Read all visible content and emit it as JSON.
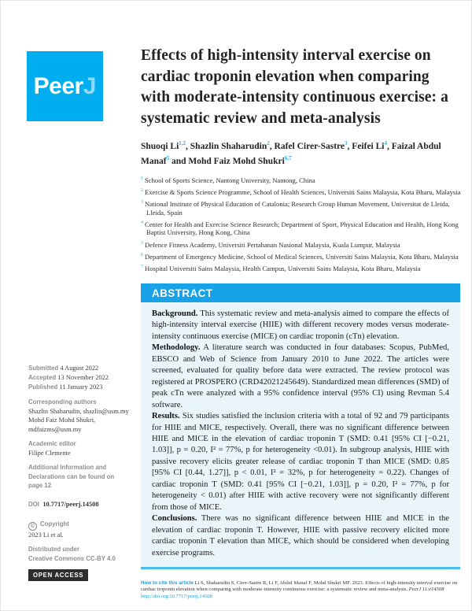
{
  "colors": {
    "brand_blue": "#00aeef",
    "abstract_bar_blue": "#18a2e8",
    "abstract_bg": "#eaf4fb",
    "abstract_rule": "#47bdf0",
    "superscript_blue": "#2fafe3",
    "sidebar_gray": "#8e8e8e",
    "open_access_bg": "#2d2d2d"
  },
  "logo": {
    "peer": "Peer",
    "jay": "J"
  },
  "article": {
    "title": "Effects of high-intensity interval exercise on cardiac troponin elevation when comparing with moderate-intensity continuous exercise: a systematic review and meta-analysis",
    "authors": [
      {
        "name": "Shuoqi Li",
        "sup": "1,2",
        "sep": ", "
      },
      {
        "name": "Shazlin Shaharudin",
        "sup": "2",
        "sep": ", "
      },
      {
        "name": "Rafel Cirer-Sastre",
        "sup": "3",
        "sep": ", "
      },
      {
        "name": "Feifei Li",
        "sup": "4",
        "sep": ", "
      },
      {
        "name": "Faizal Abdul Manaf",
        "sup": "5",
        "sep": " and "
      },
      {
        "name": "Mohd Faiz Mohd Shukri",
        "sup": "6,7",
        "sep": ""
      }
    ],
    "affiliations": [
      {
        "num": "1",
        "text": "School of Sports Science, Nantong University, Nantong, China"
      },
      {
        "num": "2",
        "text": "Exercise & Sports Science Programme, School of Health Sciences, Universiti Sains Malaysia, Kota Bharu, Malaysia"
      },
      {
        "num": "3",
        "text": "National Institute of Physical Education of Catalonia; Research Group Human Movement, Universitat de Lleida, Lleida, Spain"
      },
      {
        "num": "4",
        "text": "Center for Health and Exercise Science Research; Department of Sport, Physical Education and Health, Hong Kong Baptist University, Hong Kong, China"
      },
      {
        "num": "5",
        "text": "Defence Fitness Academy, Universiti Pertahanan Nasional Malaysia, Kuala Lumpur, Malaysia"
      },
      {
        "num": "6",
        "text": "Department of Emergency Medicine, School of Medical Sciences, Universiti Sains Malaysia, Kota Bharu, Malaysia"
      },
      {
        "num": "7",
        "text": "Hospital Universiti Sains Malaysia, Health Campus, Universiti Sains Malaysia, Kota Bharu, Malaysia"
      }
    ]
  },
  "abstract": {
    "heading": "ABSTRACT",
    "sections": [
      {
        "label": "Background.",
        "text": "This systematic review and meta-analysis aimed to compare the effects of high-intensity interval exercise (HIIE) with different recovery modes versus moderate-intensity continuous exercise (MICE) on cardiac troponin (cTn) elevation."
      },
      {
        "label": "Methodology.",
        "text": "A literature search was conducted in four databases: Scopus, PubMed, EBSCO and Web of Science from January 2010 to June 2022. The articles were screened, evaluated for quality before data were extracted. The review protocol was registered at PROSPERO (CRD42021245649). Standardized mean differences (SMD) of peak cTn were analyzed with a 95% confidence interval (95% CI) using Revman 5.4 software."
      },
      {
        "label": "Results.",
        "text": "Six studies satisfied the inclusion criteria with a total of 92 and 79 participants for HIIE and MICE, respectively. Overall, there was no significant difference between HIIE and MICE in the elevation of cardiac troponin T (SMD: 0.41 [95% CI [−0.21, 1.03]], p = 0.20, I² = 77%, p for heterogeneity <0.01). In subgroup analysis, HIIE with passive recovery elicits greater release of cardiac troponin T than MICE (SMD: 0.85 [95% CI [0.44, 1.27]], p < 0.01, I² = 32%, p for heterogeneity = 0.22). Changes of cardiac troponin T (SMD: 0.41 [95% CI [−0.21, 1.03]], p = 0.20, I² = 77%, p for heterogeneity < 0.01) after HIIE with active recovery were not significantly different from those of MICE."
      },
      {
        "label": "Conclusions.",
        "text": "There was no significant difference between HIIE and MICE in the elevation of cardiac troponin T. However, HIIE with passive recovery elicited more cardiac troponin T elevation than MICE, which should be considered when developing exercise programs."
      }
    ]
  },
  "sidebar": {
    "submitted_label": "Submitted",
    "submitted_value": "4 August 2022",
    "accepted_label": "Accepted",
    "accepted_value": "13 November 2022",
    "published_label": "Published",
    "published_value": "11 January 2023",
    "corresponding_label": "Corresponding authors",
    "corresponding_1": "Shazlin Shaharudin, shazlin@usm.my",
    "corresponding_2": "Mohd Faiz Mohd Shukri,",
    "corresponding_3": "mdfaizms@usm.my",
    "editor_label": "Academic editor",
    "editor_value": "Filipe Clemente",
    "additional_line1": "Additional Information and",
    "additional_line2": "Declarations can be found on",
    "additional_line3": "page 12",
    "doi_label": "DOI",
    "doi_value": "10.7717/peerj.14508",
    "copyright_icon": "©",
    "copyright_label": "Copyright",
    "copyright_value": "2023 Li et al.",
    "distributed_line1": "Distributed under",
    "distributed_line2": "Creative Commons CC-BY 4.0",
    "open_access": "OPEN ACCESS"
  },
  "footer": {
    "cite_label": "How to cite this article",
    "cite_text": "Li S, Shaharudin S, Cirer-Sastre R, Li F, Abdul Manaf F, Mohd Shukri MF. 2023. Effects of high-intensity interval exercise on cardiac troponin elevation when comparing with moderate-intensity continuous exercise: a systematic review and meta-analysis.",
    "cite_journal": "PeerJ 11:e14508",
    "cite_url": "http://doi.org/10.7717/peerj.14508"
  }
}
